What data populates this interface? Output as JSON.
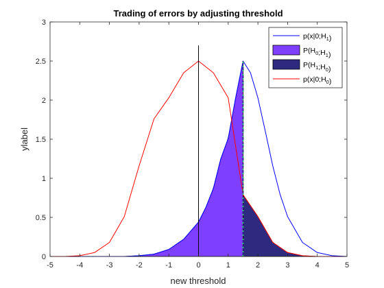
{
  "chart_data": {
    "type": "area",
    "title": "Trading of errors by adjusting threshold",
    "xlabel": "new threshold",
    "ylabel": "ylabel",
    "xlim": [
      -5,
      5
    ],
    "ylim": [
      0,
      3
    ],
    "xticks": [
      -5,
      -4,
      -3,
      -2,
      -1,
      0,
      1,
      2,
      3,
      4,
      5
    ],
    "yticks": [
      0,
      0.5,
      1,
      1.5,
      2,
      2.5,
      3
    ],
    "grid": false,
    "legend_position": "top-right",
    "threshold": 1.5,
    "series": [
      {
        "name": "p(x|0;H1)",
        "kind": "line",
        "color": "#0000ff",
        "x": [
          -5,
          -4.5,
          -4,
          -3.5,
          -3,
          -2.5,
          -2,
          -1.5,
          -1,
          -0.5,
          0,
          0.25,
          0.5,
          0.75,
          1,
          1.25,
          1.5,
          1.75,
          2,
          2.25,
          2.5,
          2.75,
          3,
          3.5,
          4,
          4.5,
          5
        ],
        "y": [
          0,
          0,
          0,
          0,
          0,
          0,
          0.01,
          0.03,
          0.09,
          0.22,
          0.44,
          0.63,
          0.87,
          1.25,
          1.51,
          2.03,
          2.5,
          2.35,
          2.03,
          1.6,
          1.16,
          0.79,
          0.51,
          0.18,
          0.05,
          0.01,
          0
        ]
      },
      {
        "name": "P(H0;H1)",
        "kind": "fill",
        "color": "#7f3fff",
        "x_from": -5,
        "x_to": 1.5
      },
      {
        "name": "P(H1;H0)",
        "kind": "fill",
        "color": "#2e2a80",
        "x_from": 1.5,
        "x_to": 5
      },
      {
        "name": "p(x|0;H0)",
        "kind": "line",
        "color": "#ff0000",
        "x": [
          -5,
          -4.5,
          -4,
          -3.5,
          -3,
          -2.5,
          -2,
          -1.5,
          -1,
          -0.5,
          0,
          0.5,
          1,
          1.5,
          2,
          2.5,
          3,
          3.5,
          4,
          4.5,
          5
        ],
        "y": [
          0,
          0,
          0.01,
          0.05,
          0.18,
          0.51,
          1.16,
          1.76,
          2.03,
          2.35,
          2.5,
          2.35,
          2.03,
          0.79,
          0.51,
          0.18,
          0.05,
          0.01,
          0,
          0,
          0
        ]
      }
    ],
    "vertical_lines": [
      {
        "x": 0,
        "y_top": 2.7,
        "color": "#000000",
        "style": "solid"
      },
      {
        "x": 1.5,
        "y_top": 2.5,
        "color": "#2e2a80",
        "style": "dashed"
      },
      {
        "x": 1.5,
        "y_top": 2.5,
        "color": "#2ecc71",
        "style": "dotted"
      }
    ],
    "legend": [
      {
        "label": "p(x|0;H",
        "sub": "1",
        "tail": ")",
        "swatch": "line",
        "color": "#0000ff"
      },
      {
        "label": "P(H",
        "sub": "0",
        "mid": ";H",
        "sub2": "1",
        "tail": ")",
        "swatch": "box",
        "color": "#7f3fff"
      },
      {
        "label": "P(H",
        "sub": "1",
        "mid": ";H",
        "sub2": "0",
        "tail": ")",
        "swatch": "box",
        "color": "#2e2a80"
      },
      {
        "label": "p(x|0;H",
        "sub": "0",
        "tail": ")",
        "swatch": "line",
        "color": "#ff0000"
      }
    ]
  }
}
